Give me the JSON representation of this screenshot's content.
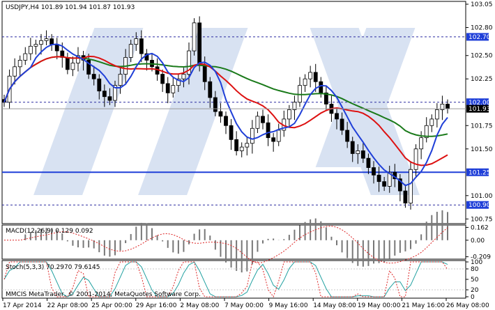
{
  "colors": {
    "background": "#ffffff",
    "frame": "#000000",
    "candle": "#000000",
    "ma_green": "#1a7a1a",
    "ma_red": "#dd1111",
    "ma_blue": "#1f3fd8",
    "level_line": "#1f3fd8",
    "grid": "#c8c8c8",
    "macd_signal": "#dd2222",
    "stoch_main": "#20a0a0",
    "stoch_signal": "#dd2222",
    "watermark": "#b9cbe8"
  },
  "chart_data": {
    "type": "line",
    "symbol_header": "USDJPY,H4  101.89 101.94 101.87 101.93",
    "current_price_label": "101.93",
    "price_axis": {
      "ylim": [
        100.7,
        103.08
      ],
      "ticks": [
        "103.05",
        "102.80",
        "102.50",
        "102.25",
        "101.75",
        "101.50",
        "101.00",
        "100.75"
      ],
      "tick_values": [
        103.05,
        102.8,
        102.5,
        102.25,
        101.75,
        101.5,
        101.0,
        100.75
      ]
    },
    "levels": [
      {
        "value": 102.7,
        "label": "102.70",
        "style": "dashed"
      },
      {
        "value": 102.0,
        "label": "102.00",
        "style": "dashed"
      },
      {
        "value": 101.25,
        "label": "101.25",
        "style": "solid"
      },
      {
        "value": 100.9,
        "label": "100.90",
        "style": "dashed"
      }
    ],
    "x_labels": [
      "17 Apr 2014",
      "22 Apr 08:00",
      "25 Apr 00:00",
      "29 Apr 16:00",
      "2 May 08:00",
      "7 May 00:00",
      "9 May 16:00",
      "14 May 08:00",
      "19 May 00:00",
      "21 May 16:00",
      "26 May 08:00"
    ],
    "candle_closes": [
      102.0,
      102.28,
      102.38,
      102.45,
      102.52,
      102.6,
      102.62,
      102.66,
      102.68,
      102.62,
      102.55,
      102.48,
      102.35,
      102.42,
      102.5,
      102.45,
      102.3,
      102.25,
      102.12,
      102.06,
      102.02,
      102.18,
      102.3,
      102.48,
      102.62,
      102.68,
      102.52,
      102.45,
      102.38,
      102.3,
      102.2,
      102.1,
      102.18,
      102.25,
      102.3,
      102.55,
      102.85,
      102.4,
      102.22,
      102.05,
      101.9,
      101.85,
      101.75,
      101.6,
      101.48,
      101.52,
      101.56,
      101.72,
      101.85,
      101.78,
      101.62,
      101.58,
      101.7,
      101.82,
      101.92,
      102.0,
      102.18,
      102.25,
      102.32,
      102.22,
      102.1,
      101.98,
      101.88,
      101.82,
      101.7,
      101.58,
      101.45,
      101.48,
      101.4,
      101.3,
      101.22,
      101.15,
      101.1,
      101.25,
      101.18,
      101.05,
      100.92,
      101.28,
      101.5,
      101.62,
      101.75,
      101.82,
      101.92,
      101.98,
      101.93
    ],
    "macd": {
      "label": "MACD(12,26,9) 0.129 0.092",
      "ticks": [
        "0.162",
        "0.00",
        "-0.209"
      ],
      "tick_values": [
        0.162,
        0.0,
        -0.209
      ]
    },
    "stochastic": {
      "label": "Stoch(5,3,3) 70.2970 79.6145",
      "ticks": [
        "100",
        "80",
        "50",
        "20",
        "0"
      ],
      "tick_values": [
        100,
        80,
        50,
        20,
        0
      ]
    },
    "footer_text": "MMCIS MetaTrader, © 2001-2014, MetaQuotes Software Corp."
  }
}
